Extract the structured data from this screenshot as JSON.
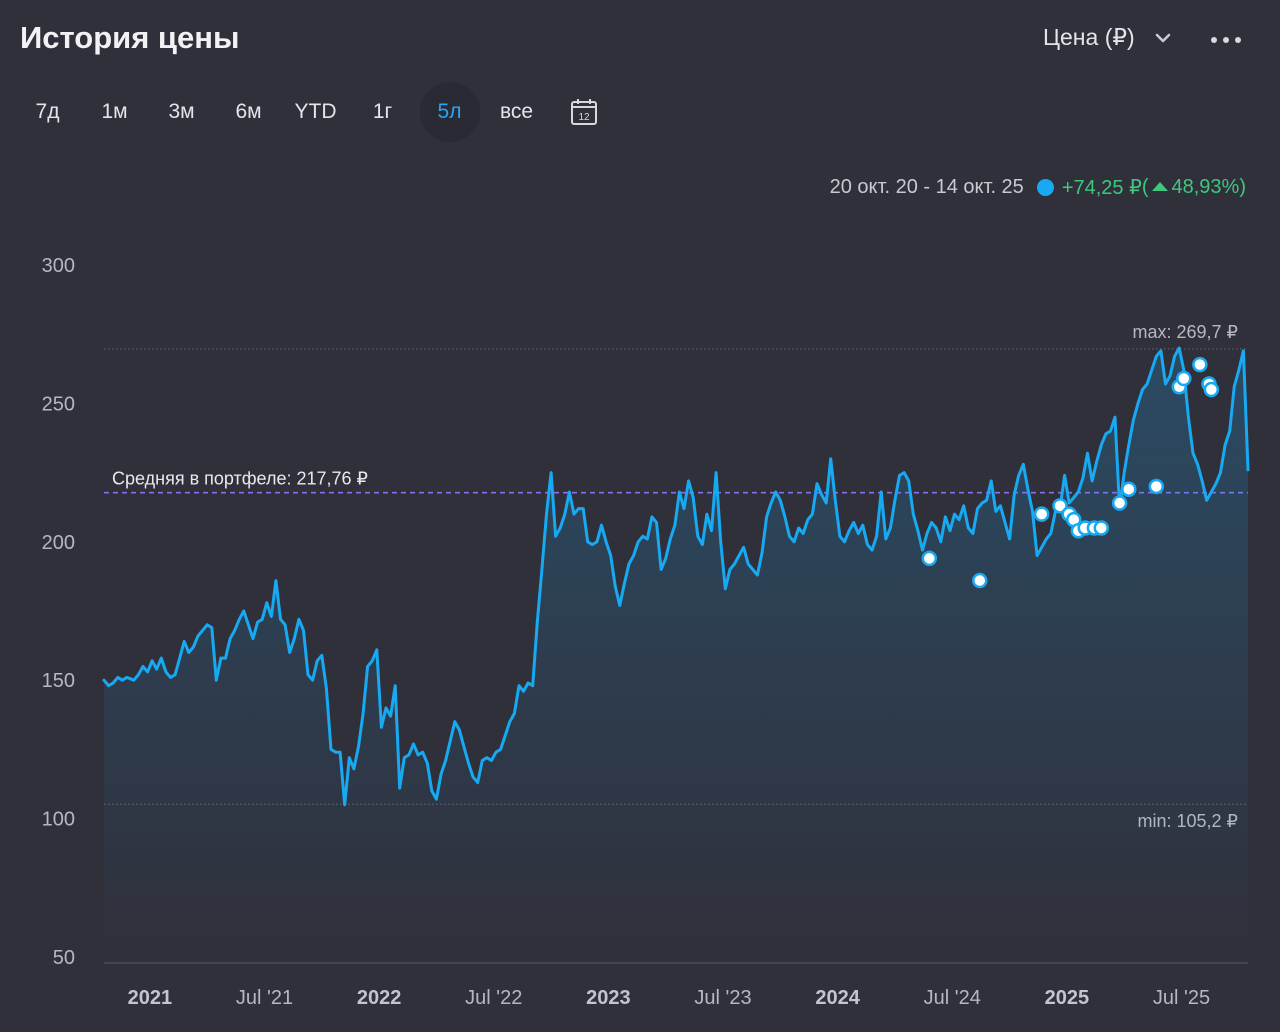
{
  "header": {
    "title": "История цены",
    "price_selector": "Цена (₽)",
    "more_icon": "more-horizontal-icon"
  },
  "ranges": [
    {
      "label": "7д",
      "active": false
    },
    {
      "label": "1м",
      "active": false
    },
    {
      "label": "3м",
      "active": false
    },
    {
      "label": "6м",
      "active": false
    },
    {
      "label": "YTD",
      "active": false
    },
    {
      "label": "1г",
      "active": false
    },
    {
      "label": "5л",
      "active": true
    },
    {
      "label": "все",
      "active": false
    }
  ],
  "calendar": {
    "icon": "calendar-icon",
    "day": "12"
  },
  "summary": {
    "period": "20 окт. 20 - 14 окт. 25",
    "change_abs": "+74,25 ₽",
    "change_open": "(",
    "change_pct": "48,93%)"
  },
  "colors": {
    "line": "#17a9f2",
    "average": "#8a6cf0",
    "positive": "#3ec77d",
    "background": "#30303b"
  },
  "chart_data": {
    "type": "line",
    "title": "История цены",
    "xlabel": "",
    "ylabel": "",
    "ylim": [
      50,
      300
    ],
    "yticks": [
      "300",
      "250",
      "200",
      "150",
      "100",
      "50"
    ],
    "xticks": [
      {
        "label": "2021",
        "x": 2021.0,
        "year": true
      },
      {
        "label": "Jul '21",
        "x": 2021.5,
        "year": false
      },
      {
        "label": "2022",
        "x": 2022.0,
        "year": true
      },
      {
        "label": "Jul '22",
        "x": 2022.5,
        "year": false
      },
      {
        "label": "2023",
        "x": 2023.0,
        "year": true
      },
      {
        "label": "Jul '23",
        "x": 2023.5,
        "year": false
      },
      {
        "label": "2024",
        "x": 2024.0,
        "year": true
      },
      {
        "label": "Jul '24",
        "x": 2024.5,
        "year": false
      },
      {
        "label": "2025",
        "x": 2025.0,
        "year": true
      },
      {
        "label": "Jul '25",
        "x": 2025.5,
        "year": false
      }
    ],
    "xlim": [
      2020.8,
      2025.79
    ],
    "max_label": "max: 269,7 ₽",
    "max_value": 269.7,
    "min_label": "min: 105,2 ₽",
    "min_value": 105.2,
    "average_label": "Средняя в портфеле: 217,76 ₽",
    "average_value": 217.76,
    "series": [
      {
        "values": [
          [
            2020.8,
            150
          ],
          [
            2020.82,
            148
          ],
          [
            2020.84,
            149
          ],
          [
            2020.86,
            151
          ],
          [
            2020.88,
            150
          ],
          [
            2020.9,
            151
          ],
          [
            2020.93,
            150
          ],
          [
            2020.95,
            152
          ],
          [
            2020.97,
            155
          ],
          [
            2020.99,
            153
          ],
          [
            2021.01,
            157
          ],
          [
            2021.03,
            154
          ],
          [
            2021.05,
            158
          ],
          [
            2021.07,
            153
          ],
          [
            2021.09,
            151
          ],
          [
            2021.11,
            152
          ],
          [
            2021.13,
            158
          ],
          [
            2021.15,
            164
          ],
          [
            2021.17,
            160
          ],
          [
            2021.19,
            162
          ],
          [
            2021.21,
            166
          ],
          [
            2021.23,
            168
          ],
          [
            2021.25,
            170
          ],
          [
            2021.27,
            169
          ],
          [
            2021.29,
            150
          ],
          [
            2021.31,
            158
          ],
          [
            2021.33,
            158
          ],
          [
            2021.35,
            165
          ],
          [
            2021.37,
            168
          ],
          [
            2021.39,
            172
          ],
          [
            2021.41,
            175
          ],
          [
            2021.43,
            170
          ],
          [
            2021.45,
            165
          ],
          [
            2021.47,
            171
          ],
          [
            2021.49,
            172
          ],
          [
            2021.51,
            178
          ],
          [
            2021.53,
            173
          ],
          [
            2021.55,
            186
          ],
          [
            2021.57,
            172
          ],
          [
            2021.59,
            170
          ],
          [
            2021.61,
            160
          ],
          [
            2021.63,
            165
          ],
          [
            2021.65,
            172
          ],
          [
            2021.67,
            168
          ],
          [
            2021.69,
            152
          ],
          [
            2021.71,
            150
          ],
          [
            2021.73,
            157
          ],
          [
            2021.75,
            159
          ],
          [
            2021.77,
            147
          ],
          [
            2021.79,
            125
          ],
          [
            2021.81,
            124
          ],
          [
            2021.83,
            124
          ],
          [
            2021.85,
            105
          ],
          [
            2021.87,
            122
          ],
          [
            2021.89,
            118
          ],
          [
            2021.91,
            126
          ],
          [
            2021.93,
            138
          ],
          [
            2021.95,
            155
          ],
          [
            2021.97,
            157
          ],
          [
            2021.99,
            161
          ],
          [
            2022.01,
            133
          ],
          [
            2022.03,
            140
          ],
          [
            2022.05,
            137
          ],
          [
            2022.07,
            148
          ],
          [
            2022.09,
            111
          ],
          [
            2022.11,
            122
          ],
          [
            2022.13,
            123
          ],
          [
            2022.15,
            127
          ],
          [
            2022.17,
            123
          ],
          [
            2022.19,
            124
          ],
          [
            2022.21,
            120
          ],
          [
            2022.23,
            110
          ],
          [
            2022.25,
            107
          ],
          [
            2022.27,
            116
          ],
          [
            2022.29,
            121
          ],
          [
            2022.31,
            128
          ],
          [
            2022.33,
            135
          ],
          [
            2022.35,
            132
          ],
          [
            2022.37,
            126
          ],
          [
            2022.39,
            120
          ],
          [
            2022.41,
            115
          ],
          [
            2022.43,
            113
          ],
          [
            2022.45,
            121
          ],
          [
            2022.47,
            122
          ],
          [
            2022.49,
            121
          ],
          [
            2022.51,
            124
          ],
          [
            2022.53,
            125
          ],
          [
            2022.55,
            130
          ],
          [
            2022.57,
            135
          ],
          [
            2022.59,
            138
          ],
          [
            2022.61,
            148
          ],
          [
            2022.63,
            146
          ],
          [
            2022.65,
            149
          ],
          [
            2022.67,
            148
          ],
          [
            2022.69,
            171
          ],
          [
            2022.71,
            190
          ],
          [
            2022.73,
            210
          ],
          [
            2022.75,
            225
          ],
          [
            2022.77,
            202
          ],
          [
            2022.79,
            205
          ],
          [
            2022.81,
            210
          ],
          [
            2022.83,
            218
          ],
          [
            2022.85,
            210
          ],
          [
            2022.87,
            212
          ],
          [
            2022.89,
            212
          ],
          [
            2022.91,
            200
          ],
          [
            2022.93,
            199
          ],
          [
            2022.95,
            200
          ],
          [
            2022.97,
            206
          ],
          [
            2022.99,
            200
          ],
          [
            2023.01,
            195
          ],
          [
            2023.03,
            184
          ],
          [
            2023.05,
            177
          ],
          [
            2023.07,
            185
          ],
          [
            2023.09,
            192
          ],
          [
            2023.11,
            195
          ],
          [
            2023.13,
            200
          ],
          [
            2023.15,
            202
          ],
          [
            2023.17,
            201
          ],
          [
            2023.19,
            209
          ],
          [
            2023.21,
            207
          ],
          [
            2023.23,
            190
          ],
          [
            2023.25,
            194
          ],
          [
            2023.27,
            201
          ],
          [
            2023.29,
            206
          ],
          [
            2023.31,
            218
          ],
          [
            2023.33,
            212
          ],
          [
            2023.35,
            222
          ],
          [
            2023.37,
            216
          ],
          [
            2023.39,
            202
          ],
          [
            2023.41,
            199
          ],
          [
            2023.43,
            210
          ],
          [
            2023.45,
            204
          ],
          [
            2023.47,
            225
          ],
          [
            2023.49,
            200
          ],
          [
            2023.51,
            183
          ],
          [
            2023.53,
            190
          ],
          [
            2023.55,
            192
          ],
          [
            2023.57,
            195
          ],
          [
            2023.59,
            198
          ],
          [
            2023.61,
            192
          ],
          [
            2023.63,
            190
          ],
          [
            2023.65,
            188
          ],
          [
            2023.67,
            196
          ],
          [
            2023.69,
            209
          ],
          [
            2023.71,
            214
          ],
          [
            2023.73,
            218
          ],
          [
            2023.75,
            215
          ],
          [
            2023.77,
            209
          ],
          [
            2023.79,
            202
          ],
          [
            2023.81,
            200
          ],
          [
            2023.83,
            205
          ],
          [
            2023.85,
            203
          ],
          [
            2023.87,
            208
          ],
          [
            2023.89,
            210
          ],
          [
            2023.91,
            221
          ],
          [
            2023.93,
            217
          ],
          [
            2023.95,
            214
          ],
          [
            2023.97,
            230
          ],
          [
            2023.99,
            215
          ],
          [
            2024.01,
            202
          ],
          [
            2024.03,
            200
          ],
          [
            2024.05,
            204
          ],
          [
            2024.07,
            207
          ],
          [
            2024.09,
            203
          ],
          [
            2024.11,
            206
          ],
          [
            2024.13,
            199
          ],
          [
            2024.15,
            197
          ],
          [
            2024.17,
            202
          ],
          [
            2024.19,
            218
          ],
          [
            2024.21,
            201
          ],
          [
            2024.23,
            205
          ],
          [
            2024.25,
            215
          ],
          [
            2024.27,
            224
          ],
          [
            2024.29,
            225
          ],
          [
            2024.31,
            222
          ],
          [
            2024.33,
            210
          ],
          [
            2024.35,
            204
          ],
          [
            2024.37,
            197
          ],
          [
            2024.39,
            203
          ],
          [
            2024.41,
            207
          ],
          [
            2024.43,
            205
          ],
          [
            2024.45,
            200
          ],
          [
            2024.47,
            209
          ],
          [
            2024.49,
            204
          ],
          [
            2024.51,
            210
          ],
          [
            2024.53,
            208
          ],
          [
            2024.55,
            213
          ],
          [
            2024.57,
            205
          ],
          [
            2024.59,
            203
          ],
          [
            2024.61,
            212
          ],
          [
            2024.63,
            214
          ],
          [
            2024.65,
            215
          ],
          [
            2024.67,
            222
          ],
          [
            2024.69,
            211
          ],
          [
            2024.71,
            213
          ],
          [
            2024.73,
            207
          ],
          [
            2024.75,
            201
          ],
          [
            2024.77,
            217
          ],
          [
            2024.79,
            224
          ],
          [
            2024.81,
            228
          ],
          [
            2024.83,
            219
          ],
          [
            2024.85,
            211
          ],
          [
            2024.87,
            195
          ],
          [
            2024.89,
            198
          ],
          [
            2024.91,
            201
          ],
          [
            2024.93,
            203
          ],
          [
            2024.95,
            211
          ],
          [
            2024.97,
            212
          ],
          [
            2024.99,
            224
          ],
          [
            2025.01,
            214
          ],
          [
            2025.03,
            216
          ],
          [
            2025.05,
            218
          ],
          [
            2025.07,
            223
          ],
          [
            2025.09,
            232
          ],
          [
            2025.11,
            222
          ],
          [
            2025.13,
            229
          ],
          [
            2025.15,
            235
          ],
          [
            2025.17,
            239
          ],
          [
            2025.19,
            240
          ],
          [
            2025.21,
            245
          ],
          [
            2025.23,
            212
          ],
          [
            2025.25,
            225
          ],
          [
            2025.27,
            235
          ],
          [
            2025.29,
            244
          ],
          [
            2025.31,
            250
          ],
          [
            2025.33,
            255
          ],
          [
            2025.35,
            257
          ],
          [
            2025.37,
            262
          ],
          [
            2025.39,
            267
          ],
          [
            2025.41,
            269
          ],
          [
            2025.43,
            257
          ],
          [
            2025.45,
            260
          ],
          [
            2025.47,
            267
          ],
          [
            2025.49,
            270
          ],
          [
            2025.51,
            262
          ],
          [
            2025.53,
            245
          ],
          [
            2025.55,
            232
          ],
          [
            2025.57,
            228
          ],
          [
            2025.59,
            222
          ],
          [
            2025.61,
            215
          ],
          [
            2025.63,
            218
          ],
          [
            2025.65,
            221
          ],
          [
            2025.67,
            225
          ],
          [
            2025.69,
            235
          ],
          [
            2025.71,
            240
          ],
          [
            2025.73,
            256
          ],
          [
            2025.75,
            262
          ],
          [
            2025.77,
            269
          ],
          [
            2025.79,
            226
          ]
        ]
      }
    ],
    "trade_markers": [
      [
        2024.4,
        194
      ],
      [
        2024.62,
        186
      ],
      [
        2024.89,
        210
      ],
      [
        2024.97,
        213
      ],
      [
        2025.01,
        210
      ],
      [
        2025.03,
        208
      ],
      [
        2025.05,
        204
      ],
      [
        2025.08,
        205
      ],
      [
        2025.12,
        205
      ],
      [
        2025.15,
        205
      ],
      [
        2025.23,
        214
      ],
      [
        2025.27,
        219
      ],
      [
        2025.39,
        220
      ],
      [
        2025.49,
        256
      ],
      [
        2025.51,
        259
      ],
      [
        2025.58,
        264
      ],
      [
        2025.62,
        257
      ],
      [
        2025.63,
        255
      ]
    ]
  }
}
